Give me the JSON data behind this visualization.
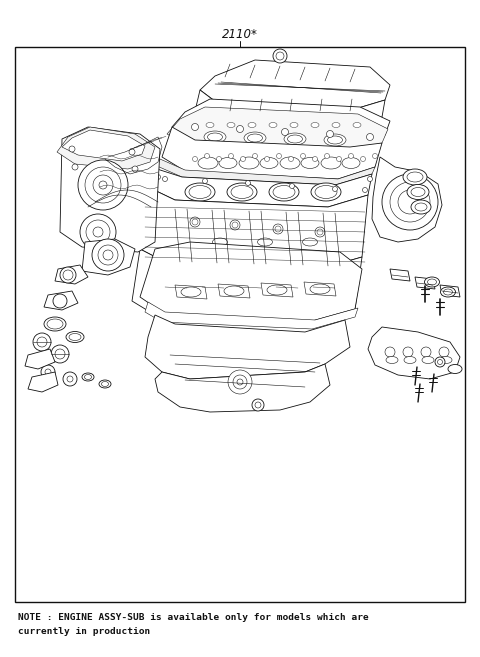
{
  "title": "2110*",
  "note_line1": "NOTE : ENGINE ASSY-SUB is available only for models which are",
  "note_line2": "currently in production",
  "bg_color": "#ffffff",
  "border_color": "#000000",
  "text_color": "#000000",
  "fig_width": 4.8,
  "fig_height": 6.57,
  "dpi": 100
}
